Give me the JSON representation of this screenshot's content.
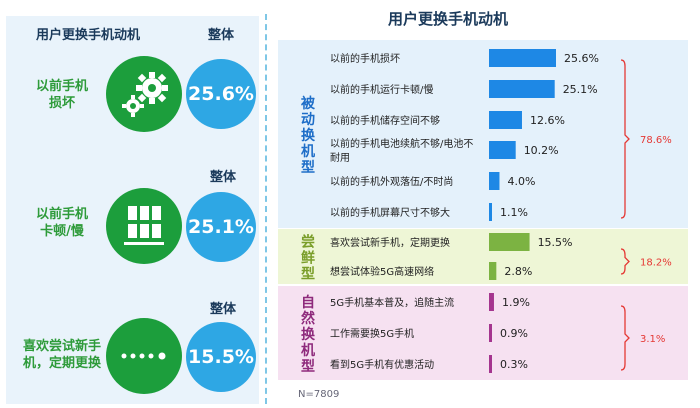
{
  "left_panel": {
    "header_motive": "用户更换手机动机",
    "header_overall": "整体",
    "items": [
      {
        "label_lines": [
          "以前手机",
          "损坏"
        ],
        "icon": "gears-icon",
        "overall_label": "",
        "percent": "25.6%"
      },
      {
        "label_lines": [
          "以前手机",
          "卡顿/慢"
        ],
        "icon": "grid-phones-icon",
        "overall_label": "整体",
        "percent": "25.1%"
      },
      {
        "label_lines": [
          "喜欢尝试新手",
          "机，定期更换"
        ],
        "icon": "dots-icon",
        "overall_label": "整体",
        "percent": "15.5%"
      }
    ]
  },
  "colors": {
    "passive": "#1e88e5",
    "trial": "#7cb342",
    "natural": "#a5358f",
    "bracket": "#e53935",
    "green_circle": "#1c9e3c",
    "blue_circle": "#2ea7e4"
  },
  "chart_data": {
    "type": "bar",
    "title": "用户更换手机动机",
    "orientation": "horizontal",
    "groups": [
      {
        "name_chars": [
          "被",
          "动",
          "换",
          "机",
          "型"
        ],
        "total": "78.6%",
        "categories": [
          "以前的手机损坏",
          "以前的手机运行卡顿/慢",
          "以前的手机储存空间不够",
          "以前的手机电池续航不够/电池不耐用",
          "以前的手机外观落伍/不时尚",
          "以前的手机屏幕尺寸不够大"
        ],
        "values": [
          25.6,
          25.1,
          12.6,
          10.2,
          4.0,
          1.1
        ],
        "value_labels": [
          "25.6%",
          "25.1%",
          "12.6%",
          "10.2%",
          "4.0%",
          "1.1%"
        ]
      },
      {
        "name_chars": [
          "尝",
          "鲜",
          "型"
        ],
        "total": "18.2%",
        "categories": [
          "喜欢尝试新手机，定期更换",
          "想尝试体验5G高速网络"
        ],
        "values": [
          15.5,
          2.8
        ],
        "value_labels": [
          "15.5%",
          "2.8%"
        ]
      },
      {
        "name_chars": [
          "自",
          "然",
          "换",
          "机",
          "型"
        ],
        "total": "3.1%",
        "categories": [
          "5G手机基本普及，追随主流",
          "工作需要换5G手机",
          "看到5G手机有优惠活动"
        ],
        "values": [
          1.9,
          0.9,
          0.3
        ],
        "value_labels": [
          "1.9%",
          "0.9%",
          "0.3%"
        ]
      }
    ],
    "xlim": [
      0,
      25.6
    ]
  },
  "footnote": "N=7809"
}
